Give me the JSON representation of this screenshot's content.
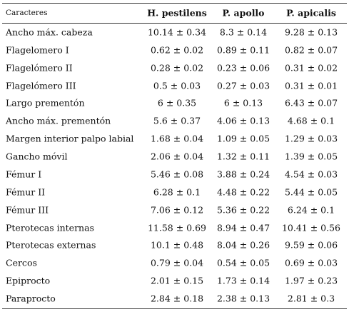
{
  "table": {
    "header": [
      "Caracteres",
      "H. pestilens",
      "P. apollo",
      "P. apicalis"
    ],
    "rows": [
      [
        "Ancho máx. cabeza",
        "10.14 ± 0.34",
        "8.3 ± 0.14",
        "9.28 ± 0.13"
      ],
      [
        "Flagelomero I",
        "0.62 ± 0.02",
        "0.89 ± 0.11",
        "0.82 ± 0.07"
      ],
      [
        "Flagelómero II",
        "0.28 ± 0.02",
        "0.23 ± 0.06",
        "0.31 ± 0.02"
      ],
      [
        "Flagelómero III",
        "0.5 ± 0.03",
        "0.27 ± 0.03",
        "0.31 ± 0.01"
      ],
      [
        "Largo prementón",
        "6 ± 0.35",
        "6 ± 0.13",
        "6.43 ± 0.07"
      ],
      [
        "Ancho máx. prementón",
        "5.6 ± 0.37",
        "4.06 ± 0.13",
        "4.68 ± 0.1"
      ],
      [
        "Margen interior palpo labial",
        "1.68 ± 0.04",
        "1.09 ± 0.05",
        "1.29 ± 0.03"
      ],
      [
        "Gancho móvil",
        "2.06 ± 0.04",
        "1.32 ± 0.11",
        "1.39 ± 0.05"
      ],
      [
        "Fémur I",
        "5.46 ± 0.08",
        "3.88 ± 0.24",
        "4.54 ± 0.03"
      ],
      [
        "Fémur II",
        "6.28 ± 0.1",
        "4.48 ± 0.22",
        "5.44 ± 0.05"
      ],
      [
        "Fémur III",
        "7.06 ± 0.12",
        "5.36 ± 0.22",
        "6.24 ± 0.1"
      ],
      [
        "Pterotecas internas",
        "11.58 ± 0.69",
        "8.94 ± 0.47",
        "10.41 ± 0.56"
      ],
      [
        "Pterotecas externas",
        "10.1 ± 0.48",
        "8.04 ± 0.26",
        "9.59 ± 0.06"
      ],
      [
        "Cercos",
        "0.79 ± 0.04",
        "0.54 ± 0.05",
        "0.69 ± 0.03"
      ],
      [
        "Epiprocto",
        "2.01 ± 0.15",
        "1.73 ± 0.14",
        "1.97 ± 0.23"
      ],
      [
        "Paraprocto",
        "2.84 ± 0.18",
        "2.38 ± 0.13",
        "2.81 ± 0.3"
      ]
    ]
  }
}
